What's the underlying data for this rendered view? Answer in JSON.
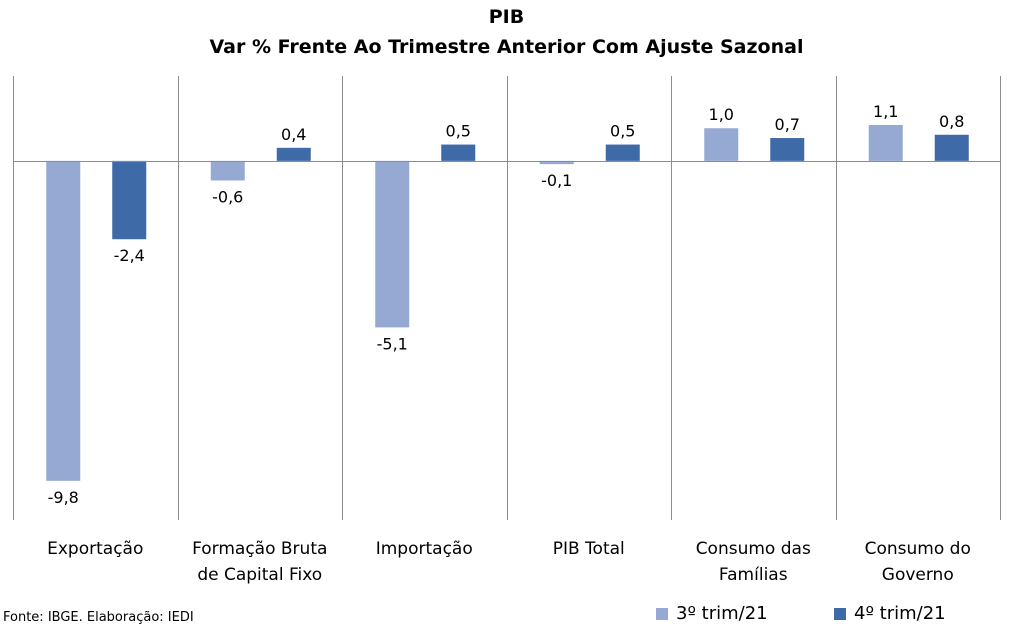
{
  "chart_data": {
    "type": "bar",
    "title": "PIB",
    "subtitle": "Var % Frente Ao Trimestre Anterior Com Ajuste Sazonal",
    "categories": [
      [
        "Exportação"
      ],
      [
        "Formação Bruta",
        "de Capital Fixo"
      ],
      [
        "Importação"
      ],
      [
        "PIB Total"
      ],
      [
        "Consumo das",
        "Famílias"
      ],
      [
        "Consumo do",
        "Governo"
      ]
    ],
    "series": [
      {
        "name": "3º trim/21",
        "color": "#95a9d3",
        "values": [
          -9.8,
          -0.6,
          -5.1,
          -0.1,
          1.0,
          1.1
        ],
        "labels": [
          "-9,8",
          "-0,6",
          "-5,1",
          "-0,1",
          "1,0",
          "1,1"
        ]
      },
      {
        "name": "4º trim/21",
        "color": "#3e6aa8",
        "values": [
          -2.4,
          0.4,
          0.5,
          0.5,
          0.7,
          0.8
        ],
        "labels": [
          "-2,4",
          "0,4",
          "0,5",
          "0,5",
          "0,7",
          "0,8"
        ]
      }
    ],
    "ylim": [
      -11.0,
      2.6
    ],
    "grid": false,
    "legend": "bottom-right"
  },
  "source": "Fonte: IBGE. Elaboração: IEDI"
}
